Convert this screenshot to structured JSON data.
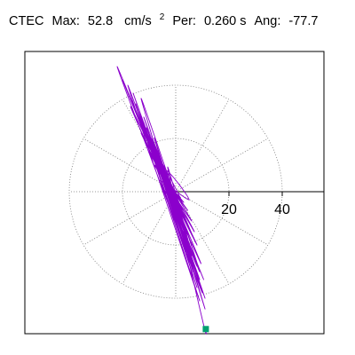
{
  "title": {
    "station": "CTEC",
    "max_label": "Max:",
    "max_value": "52.8",
    "max_unit": "cm/s",
    "max_unit_exp": "2",
    "per_label": "Per:",
    "per_value": "0.260 s",
    "ang_label": "Ang:",
    "ang_value": "-77.7"
  },
  "chart_data": {
    "type": "scatter",
    "subtype": "polar particle-motion trace",
    "radial_rings": [
      20,
      40
    ],
    "radial_tick_labels": [
      "20",
      "40"
    ],
    "radial_max": 52.8,
    "grid": true,
    "max_amplitude": 52.8,
    "max_angle_deg": -77.7,
    "end_marker": {
      "x": 11.3,
      "y": -51.6
    },
    "trace": [
      {
        "x": 0.0,
        "y": 0.0
      },
      {
        "x": -2.0,
        "y": 1.5
      },
      {
        "x": 1.8,
        "y": -2.2
      },
      {
        "x": -3.5,
        "y": 3.0
      },
      {
        "x": 3.0,
        "y": -4.0
      },
      {
        "x": -5.5,
        "y": 6.0
      },
      {
        "x": 4.5,
        "y": -7.0
      },
      {
        "x": -8.0,
        "y": 10.0
      },
      {
        "x": 6.0,
        "y": -11.0
      },
      {
        "x": -10.0,
        "y": 15.0
      },
      {
        "x": 7.0,
        "y": -15.0
      },
      {
        "x": -13.0,
        "y": 22.0
      },
      {
        "x": 8.0,
        "y": -20.0
      },
      {
        "x": -17.0,
        "y": 32.0
      },
      {
        "x": 9.5,
        "y": -27.0
      },
      {
        "x": -20.0,
        "y": 42.0
      },
      {
        "x": 10.5,
        "y": -33.0
      },
      {
        "x": -22.0,
        "y": 47.0
      },
      {
        "x": 10.0,
        "y": -38.0
      },
      {
        "x": -18.0,
        "y": 40.0
      },
      {
        "x": 9.0,
        "y": -41.0
      },
      {
        "x": -15.0,
        "y": 33.0
      },
      {
        "x": 8.0,
        "y": -36.0
      },
      {
        "x": -12.0,
        "y": 26.0
      },
      {
        "x": 6.5,
        "y": -30.0
      },
      {
        "x": -9.0,
        "y": 20.0
      },
      {
        "x": 5.0,
        "y": -23.0
      },
      {
        "x": -7.0,
        "y": 15.0
      },
      {
        "x": 4.0,
        "y": -16.0
      },
      {
        "x": -5.0,
        "y": 10.0
      },
      {
        "x": 3.0,
        "y": -9.0
      },
      {
        "x": -6.0,
        "y": 4.0
      },
      {
        "x": 5.0,
        "y": -3.0
      },
      {
        "x": -4.0,
        "y": 8.0
      },
      {
        "x": 2.0,
        "y": -12.0
      },
      {
        "x": -8.0,
        "y": 18.0
      },
      {
        "x": 6.0,
        "y": -20.0
      },
      {
        "x": -11.0,
        "y": 24.0
      },
      {
        "x": 7.5,
        "y": -26.0
      },
      {
        "x": -14.0,
        "y": 30.0
      },
      {
        "x": 9.0,
        "y": -33.0
      },
      {
        "x": -16.0,
        "y": 37.0
      },
      {
        "x": 11.0,
        "y": -40.0
      },
      {
        "x": -12.0,
        "y": 28.0
      },
      {
        "x": 8.0,
        "y": -28.0
      },
      {
        "x": -9.0,
        "y": 16.0
      },
      {
        "x": 5.0,
        "y": -14.0
      },
      {
        "x": -4.0,
        "y": 5.0
      },
      {
        "x": 3.0,
        "y": -5.0
      },
      {
        "x": -2.5,
        "y": 2.0
      },
      {
        "x": 2.0,
        "y": -3.0
      },
      {
        "x": -6.0,
        "y": 12.0
      },
      {
        "x": 7.0,
        "y": -18.0
      },
      {
        "x": -10.0,
        "y": 21.0
      },
      {
        "x": 9.0,
        "y": -30.0
      },
      {
        "x": -13.0,
        "y": 35.0
      },
      {
        "x": 11.0,
        "y": -44.0
      },
      {
        "x": -8.0,
        "y": 20.0
      },
      {
        "x": 6.0,
        "y": -24.0
      },
      {
        "x": -3.0,
        "y": 9.0
      },
      {
        "x": 10.0,
        "y": -48.0
      },
      {
        "x": 11.3,
        "y": -51.6
      }
    ]
  }
}
